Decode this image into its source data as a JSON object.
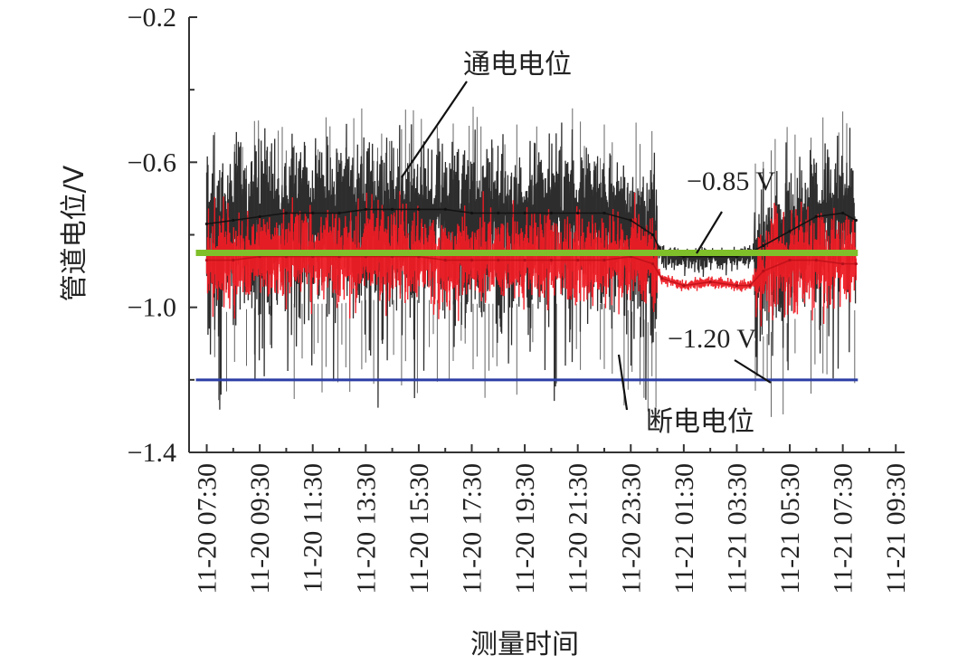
{
  "chart_data": {
    "type": "line",
    "xlabel": "测量时间",
    "ylabel": "管道电位/V",
    "ylim": [
      -1.4,
      -0.2
    ],
    "xlim": [
      "11-20 06:50",
      "11-21 09:50"
    ],
    "y_ticks": [
      {
        "value": -0.2,
        "label": "−0.2"
      },
      {
        "value": -0.6,
        "label": "−0.6"
      },
      {
        "value": -1.0,
        "label": "−1.0"
      },
      {
        "value": -1.4,
        "label": "−1.4"
      }
    ],
    "x_ticks": [
      {
        "value": "11-20 07:30",
        "label": "11-20 07:30"
      },
      {
        "value": "11-20 09:30",
        "label": "11-20 09:30"
      },
      {
        "value": "11-20 11:30",
        "label": "11-20 11:30"
      },
      {
        "value": "11-20 13:30",
        "label": "11-20 13:30"
      },
      {
        "value": "11-20 15:30",
        "label": "11-20 15:30"
      },
      {
        "value": "11-20 17:30",
        "label": "11-20 17:30"
      },
      {
        "value": "11-20 19:30",
        "label": "11-20 19:30"
      },
      {
        "value": "11-20 21:30",
        "label": "11-20 21:30"
      },
      {
        "value": "11-20 23:30",
        "label": "11-20 23:30"
      },
      {
        "value": "11-21 01:30",
        "label": "11-21 01:30"
      },
      {
        "value": "11-21 03:30",
        "label": "11-21 03:30"
      },
      {
        "value": "11-21 05:30",
        "label": "11-21 05:30"
      },
      {
        "value": "11-21 07:30",
        "label": "11-21 07:30"
      },
      {
        "value": "11-21 09:30",
        "label": "11-21 09:30"
      }
    ],
    "series": [
      {
        "name": "通电电位",
        "color": "#222222",
        "points": [
          {
            "x": "11-20 07:30",
            "y": -0.77
          },
          {
            "x": "11-20 08:30",
            "y": -0.76
          },
          {
            "x": "11-20 09:30",
            "y": -0.75
          },
          {
            "x": "11-20 10:30",
            "y": -0.74
          },
          {
            "x": "11-20 11:30",
            "y": -0.74
          },
          {
            "x": "11-20 12:30",
            "y": -0.74
          },
          {
            "x": "11-20 13:30",
            "y": -0.73
          },
          {
            "x": "11-20 14:30",
            "y": -0.73
          },
          {
            "x": "11-20 15:30",
            "y": -0.73
          },
          {
            "x": "11-20 16:30",
            "y": -0.73
          },
          {
            "x": "11-20 17:30",
            "y": -0.74
          },
          {
            "x": "11-20 18:30",
            "y": -0.74
          },
          {
            "x": "11-20 19:30",
            "y": -0.74
          },
          {
            "x": "11-20 20:30",
            "y": -0.74
          },
          {
            "x": "11-20 21:30",
            "y": -0.74
          },
          {
            "x": "11-20 22:30",
            "y": -0.74
          },
          {
            "x": "11-20 23:30",
            "y": -0.76
          },
          {
            "x": "11-21 00:20",
            "y": -0.8
          },
          {
            "x": "11-21 00:40",
            "y": -0.85
          },
          {
            "x": "11-21 01:30",
            "y": -0.86
          },
          {
            "x": "11-21 02:30",
            "y": -0.86
          },
          {
            "x": "11-21 03:30",
            "y": -0.86
          },
          {
            "x": "11-21 04:00",
            "y": -0.85
          },
          {
            "x": "11-21 04:30",
            "y": -0.83
          },
          {
            "x": "11-21 05:30",
            "y": -0.79
          },
          {
            "x": "11-21 06:30",
            "y": -0.75
          },
          {
            "x": "11-21 07:30",
            "y": -0.74
          },
          {
            "x": "11-21 08:00",
            "y": -0.76
          }
        ]
      },
      {
        "name": "断电电位",
        "color": "#ee1c25",
        "points": [
          {
            "x": "11-20 07:30",
            "y": -0.87
          },
          {
            "x": "11-20 08:30",
            "y": -0.87
          },
          {
            "x": "11-20 09:30",
            "y": -0.86
          },
          {
            "x": "11-20 10:30",
            "y": -0.86
          },
          {
            "x": "11-20 11:30",
            "y": -0.86
          },
          {
            "x": "11-20 12:30",
            "y": -0.86
          },
          {
            "x": "11-20 13:30",
            "y": -0.86
          },
          {
            "x": "11-20 14:30",
            "y": -0.86
          },
          {
            "x": "11-20 15:30",
            "y": -0.86
          },
          {
            "x": "11-20 16:30",
            "y": -0.87
          },
          {
            "x": "11-20 17:30",
            "y": -0.87
          },
          {
            "x": "11-20 18:30",
            "y": -0.87
          },
          {
            "x": "11-20 19:30",
            "y": -0.87
          },
          {
            "x": "11-20 20:30",
            "y": -0.87
          },
          {
            "x": "11-20 21:30",
            "y": -0.87
          },
          {
            "x": "11-20 22:30",
            "y": -0.87
          },
          {
            "x": "11-20 23:30",
            "y": -0.86
          },
          {
            "x": "11-21 00:20",
            "y": -0.88
          },
          {
            "x": "11-21 00:40",
            "y": -0.92
          },
          {
            "x": "11-21 01:30",
            "y": -0.94
          },
          {
            "x": "11-21 02:30",
            "y": -0.93
          },
          {
            "x": "11-21 03:30",
            "y": -0.94
          },
          {
            "x": "11-21 04:00",
            "y": -0.94
          },
          {
            "x": "11-21 04:30",
            "y": -0.9
          },
          {
            "x": "11-21 05:30",
            "y": -0.87
          },
          {
            "x": "11-21 06:30",
            "y": -0.87
          },
          {
            "x": "11-21 07:30",
            "y": -0.88
          },
          {
            "x": "11-21 08:00",
            "y": -0.88
          }
        ]
      }
    ],
    "reference_lines": [
      {
        "name": "−0.85 V",
        "y": -0.85,
        "color": "#7fbf2a"
      },
      {
        "name": "−1.20 V",
        "y": -1.2,
        "color": "#2b3ea5"
      }
    ],
    "annotations": [
      {
        "text": "通电电位",
        "target_series": "通电电位"
      },
      {
        "text": "断电电位",
        "target_series": "断电电位"
      },
      {
        "text": "−0.85 V",
        "target_ref": "−0.85 V"
      },
      {
        "text": "−1.20 V",
        "target_ref": "−1.20 V"
      }
    ],
    "grid": false,
    "legend": "none"
  }
}
